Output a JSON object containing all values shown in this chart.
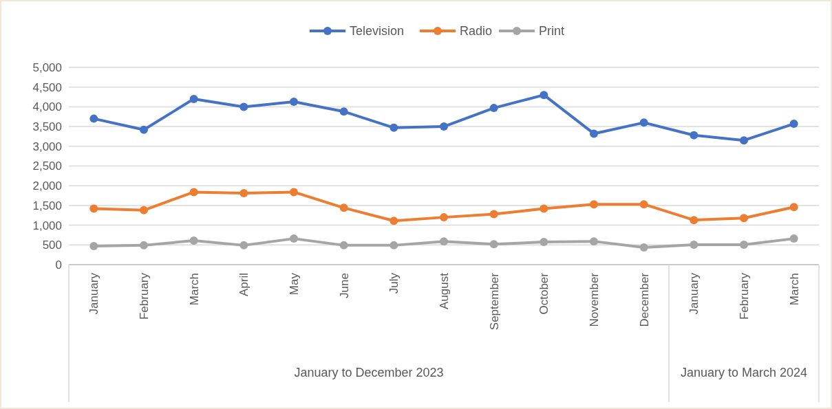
{
  "chart_data": {
    "type": "line",
    "categories": [
      "January",
      "February",
      "March",
      "April",
      "May",
      "June",
      "July",
      "August",
      "September",
      "October",
      "November",
      "December",
      "January",
      "February",
      "March"
    ],
    "series": [
      {
        "name": "Television",
        "color": "#4472c4",
        "values": [
          3700,
          3420,
          4200,
          4000,
          4130,
          3880,
          3470,
          3500,
          3970,
          4300,
          3320,
          3600,
          3280,
          3150,
          3570
        ]
      },
      {
        "name": "Radio",
        "color": "#ed7d31",
        "values": [
          1420,
          1380,
          1840,
          1810,
          1840,
          1440,
          1110,
          1200,
          1280,
          1420,
          1530,
          1530,
          1130,
          1180,
          1460
        ]
      },
      {
        "name": "Print",
        "color": "#a5a5a5",
        "values": [
          470,
          490,
          610,
          490,
          660,
          490,
          490,
          590,
          520,
          575,
          590,
          435,
          505,
          505,
          660
        ]
      }
    ],
    "ylim": [
      0,
      5000
    ],
    "yticks": [
      {
        "value": 0,
        "label": "0"
      },
      {
        "value": 500,
        "label": "500"
      },
      {
        "value": 1000,
        "label": "1,000"
      },
      {
        "value": 1500,
        "label": "1,500"
      },
      {
        "value": 2000,
        "label": "2,000"
      },
      {
        "value": 2500,
        "label": "2,500"
      },
      {
        "value": 3000,
        "label": "3,000"
      },
      {
        "value": 3500,
        "label": "3,500"
      },
      {
        "value": 4000,
        "label": "4,000"
      },
      {
        "value": 4500,
        "label": "4,500"
      },
      {
        "value": 5000,
        "label": "5,000"
      }
    ],
    "grid": "y",
    "legend": "top",
    "marker": "circle",
    "line_style": "solid",
    "annotations": [
      "January to December 2023",
      "January to March 2024"
    ]
  }
}
